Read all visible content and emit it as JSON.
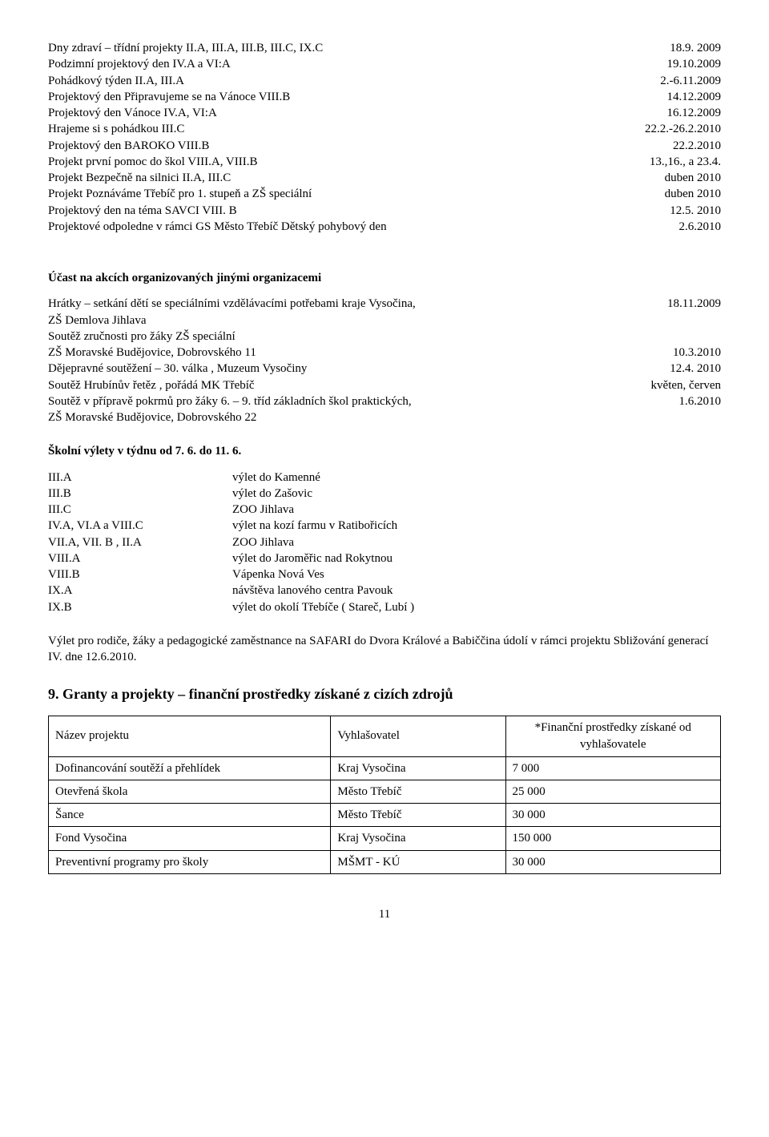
{
  "block1": [
    {
      "l": "Dny zdraví – třídní  projekty II.A, III.A, III.B,  III.C, IX.C",
      "r": "18.9. 2009"
    },
    {
      "l": "Podzimní projektový den            IV.A a VI:A",
      "r": "19.10.2009"
    },
    {
      "l": "Pohádkový týden                          II.A, III.A",
      "r": "2.-6.11.2009"
    },
    {
      "l": "Projektový den Připravujeme se na Vánoce VIII.B",
      "r": "14.12.2009"
    },
    {
      "l": "Projektový den Vánoce  IV.A, VI:A",
      "r": "16.12.2009"
    },
    {
      "l": "Hrajeme si s pohádkou  III.C",
      "r": "22.2.-26.2.2010"
    },
    {
      "l": "Projektový den BAROKO VIII.B",
      "r": "22.2.2010"
    },
    {
      "l": "Projekt první pomoc do škol VIII.A, VIII.B",
      "r": "13.,16., a 23.4."
    },
    {
      "l": "Projekt  Bezpečně na silnici  II.A, III.C",
      "r": "duben 2010"
    },
    {
      "l": "Projekt Poznáváme Třebíč pro 1. stupeň  a ZŠ speciální",
      "r": "duben 2010"
    },
    {
      "l": "Projektový den na téma SAVCI VIII. B",
      "r": "12.5. 2010"
    },
    {
      "l": "Projektové odpoledne v rámci GS Město Třebíč Dětský pohybový den",
      "r": " 2.6.2010"
    }
  ],
  "participation_head": "Účast na akcích organizovaných jinými organizacemi",
  "block2": [
    {
      "l": "Hrátky – setkání dětí se speciálními vzdělávacími potřebami kraje Vysočina,",
      "r": "18.11.2009"
    },
    {
      "l": "ZŠ Demlova Jihlava",
      "r": ""
    },
    {
      "l": "Soutěž zručnosti pro žáky ZŠ speciální",
      "r": ""
    },
    {
      "l": "ZŠ Moravské Budějovice, Dobrovského 11",
      "r": "10.3.2010"
    },
    {
      "l": "Dějepravné soutěžení – 30. válka , Muzeum Vysočiny",
      "r": "12.4. 2010"
    },
    {
      "l": "Soutěž Hrubínův řetěz , pořádá MK Třebíč",
      "r": "květen, červen"
    },
    {
      "l": "Soutěž v přípravě pokrmů pro žáky 6. – 9. tříd základních škol praktických,",
      "r": "1.6.2010"
    },
    {
      "l": "ZŠ Moravské Budějovice, Dobrovského 22",
      "r": ""
    }
  ],
  "trips_head": "Školní výlety  v týdnu od 7. 6. do 11. 6.",
  "trips": [
    {
      "c": "III.A",
      "d": "výlet do Kamenné"
    },
    {
      "c": "III.B",
      "d": "výlet do Zašovic"
    },
    {
      "c": "III.C",
      "d": "ZOO Jihlava"
    },
    {
      "c": "IV.A, VI.A a VIII.C",
      "d": "výlet na kozí farmu v  Ratibořicích"
    },
    {
      "c": "VII.A, VII. B , II.A",
      "d": "ZOO Jihlava"
    },
    {
      "c": "VIII.A",
      "d": "výlet do Jaroměřic nad Rokytnou"
    },
    {
      "c": "VIII.B",
      "d": "Vápenka Nová Ves"
    },
    {
      "c": " IX.A",
      "d": "návštěva lanového centra Pavouk"
    },
    {
      "c": " IX.B",
      "d": "výlet do okolí Třebíče ( Stareč, Lubí )"
    }
  ],
  "safari_para": "Výlet pro rodiče, žáky  a pedagogické  zaměstnance na SAFARI do Dvora Králové a Babiččina údolí v rámci projektu Sbližování generací IV. dne 12.6.2010.",
  "grants_head": "9. Granty a projekty – finanční prostředky získané z cizích zdrojů",
  "grants_cols": [
    "Název projektu",
    "Vyhlašovatel",
    "*Finanční prostředky získané od vyhlašovatele"
  ],
  "grants_rows": [
    [
      "Dofinancování soutěží a přehlídek",
      "Kraj Vysočina",
      "7 000"
    ],
    [
      "Otevřená škola",
      "Město Třebíč",
      "25 000"
    ],
    [
      "Šance",
      "Město Třebíč",
      "30 000"
    ],
    [
      "Fond Vysočina",
      "Kraj Vysočina",
      "150 000"
    ],
    [
      "Preventivní programy pro školy",
      "MŠMT - KÚ",
      "30 000"
    ]
  ],
  "page_number": "11"
}
